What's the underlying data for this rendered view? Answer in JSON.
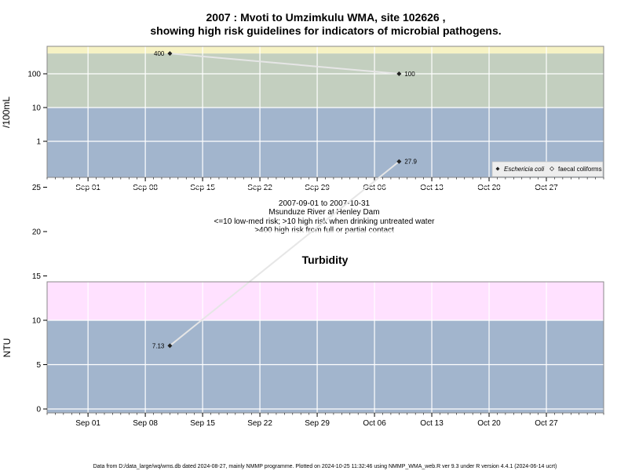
{
  "chart_data": [
    {
      "type": "line",
      "title_line1": "2007 : Mvoti to Umzimkulu WMA, site 102626 ,",
      "title_line2": "showing high risk guidelines for indicators of microbial pathogens.",
      "ylabel": "/100mL",
      "yscale": "log",
      "yticks": [
        1,
        10,
        100
      ],
      "ytick_labels": [
        "1",
        "10",
        "100"
      ],
      "xlim": [
        "2007-08-27",
        "2007-11-03"
      ],
      "xticks": [
        "2007-09-01",
        "2007-09-08",
        "2007-09-15",
        "2007-09-22",
        "2007-09-29",
        "2007-10-06",
        "2007-10-13",
        "2007-10-20",
        "2007-10-27"
      ],
      "xtick_labels": [
        "Sep 01",
        "Sep 08",
        "Sep 15",
        "Sep 22",
        "Sep 29",
        "Oct 06",
        "Oct 13",
        "Oct 20",
        "Oct 27"
      ],
      "bands": [
        {
          "from": 0,
          "to": 10,
          "color": "#a2b5cd"
        },
        {
          "from": 10,
          "to": 400,
          "color": "#c3cfbf"
        },
        {
          "from": 400,
          "to": null,
          "color": "#f6f2c4"
        }
      ],
      "series": [
        {
          "name": "Eschericia coli",
          "marker": "filled-diamond",
          "points": [
            {
              "x": "2007-09-11",
              "y": 400,
              "label": "400"
            },
            {
              "x": "2007-10-09",
              "y": 100,
              "label": "100"
            }
          ]
        }
      ],
      "legend": {
        "placement": "bottom-right",
        "entries": [
          "Eschericia coli",
          "faecal coliforms"
        ]
      },
      "info_lines": [
        "2007-09-01 to 2007-10-31",
        "Msunduze River at Henley Dam",
        "<=10 low-med risk; >10 high risk when drinking untreated water",
        ">400 high risk from full or partial contact"
      ],
      "grid": true
    },
    {
      "type": "line",
      "title": "Turbidity",
      "ylabel": "NTU",
      "yticks": [
        0,
        5,
        10,
        15,
        20,
        25
      ],
      "ytick_labels": [
        "0",
        "5",
        "10",
        "15",
        "20",
        "25"
      ],
      "xlim": [
        "2007-08-27",
        "2007-11-03"
      ],
      "xticks": [
        "2007-09-01",
        "2007-09-08",
        "2007-09-15",
        "2007-09-22",
        "2007-09-29",
        "2007-10-06",
        "2007-10-13",
        "2007-10-20",
        "2007-10-27"
      ],
      "xtick_labels": [
        "Sep 01",
        "Sep 08",
        "Sep 15",
        "Sep 22",
        "Sep 29",
        "Oct 06",
        "Oct 13",
        "Oct 20",
        "Oct 27"
      ],
      "bands": [
        {
          "from": null,
          "to": 10,
          "color": "#a2b5cd"
        },
        {
          "from": 10,
          "to": null,
          "color": "#ffe1ff"
        }
      ],
      "series": [
        {
          "marker": "filled-diamond",
          "points": [
            {
              "x": "2007-09-11",
              "y": 7.13,
              "label": "7.13"
            },
            {
              "x": "2007-10-09",
              "y": 27.9,
              "label": "27.9"
            }
          ]
        }
      ],
      "grid": true
    }
  ],
  "footer": "Data from D:/data_large/wq/wms.db dated 2024-08-27, mainly NMMP programme. Plotted on 2024-10-25 11:32:46 using NMMP_WMA_web.R ver 9.3 under R version 4.4.1 (2024-06-14 ucrt)"
}
